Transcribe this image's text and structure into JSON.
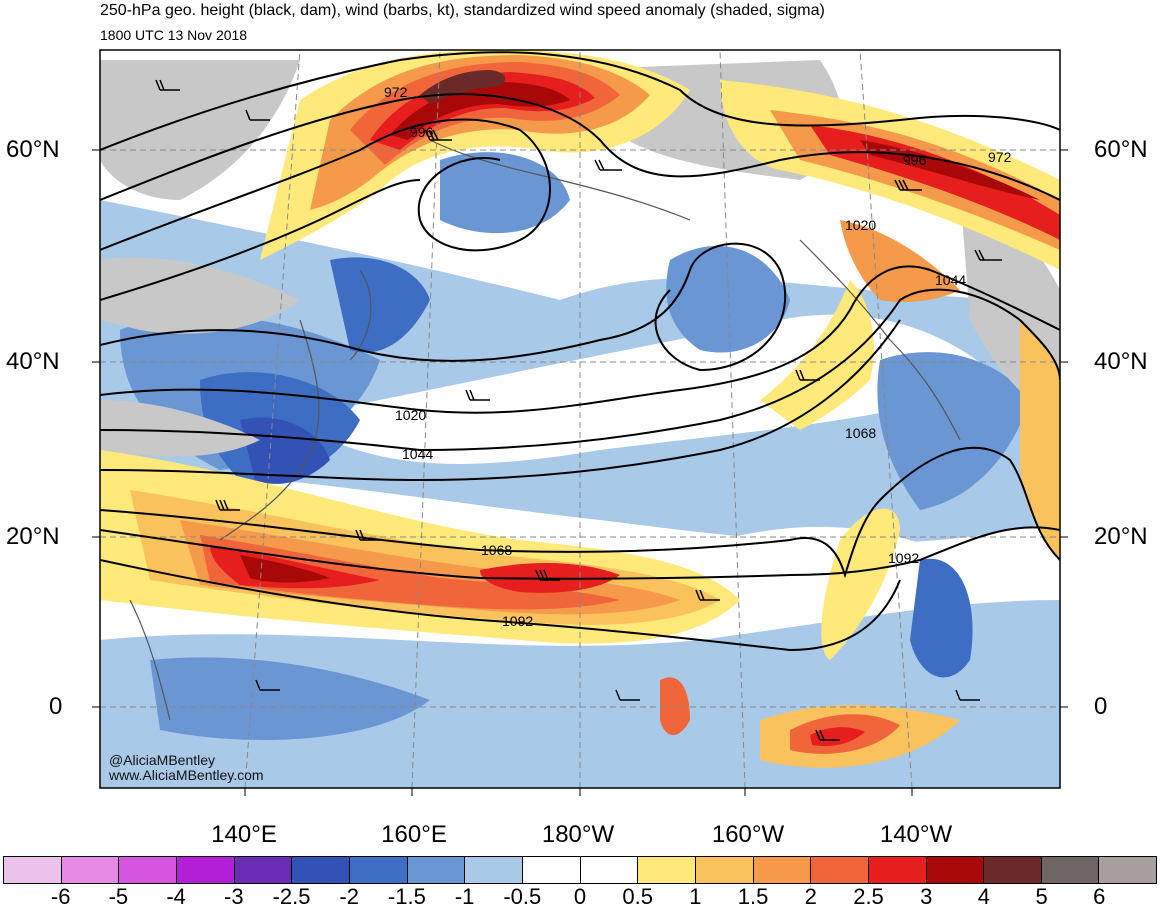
{
  "title": "250-hPa geo. height (black, dam), wind (barbs, kt), standardized wind speed anomaly (shaded, sigma)",
  "subtitle": "1800 UTC 13 Nov 2018",
  "lat_labels": [
    "60°N",
    "40°N",
    "20°N",
    "0"
  ],
  "lon_labels": [
    "140°E",
    "160°E",
    "180°W",
    "160°W",
    "140°W"
  ],
  "contour_labels": [
    "972",
    "996",
    "972",
    "996",
    "1020",
    "1044",
    "1020",
    "1044",
    "1068",
    "1068",
    "1092",
    "1092"
  ],
  "credit": {
    "handle": "@AliciaMBentley",
    "website": "www.AliciaMBentley.com"
  },
  "colorbar": {
    "labels": [
      "-6",
      "-5",
      "-4",
      "-3",
      "-2.5",
      "-2",
      "-1.5",
      "-1",
      "-0.5",
      "0",
      "0.5",
      "1",
      "1.5",
      "2",
      "2.5",
      "3",
      "4",
      "5",
      "6"
    ],
    "colors": [
      "#ebc2eb",
      "#e68ae6",
      "#d355e0",
      "#b31fd6",
      "#6a2cb3",
      "#3352b5",
      "#3d6ec4",
      "#6a96d4",
      "#a8c9e8",
      "#ffffff",
      "#ffffff",
      "#ffe97a",
      "#f9c25c",
      "#f59a4a",
      "#f0663a",
      "#e61e1e",
      "#a80808",
      "#6b2a2a",
      "#6e6565",
      "#a89e9e"
    ]
  }
}
